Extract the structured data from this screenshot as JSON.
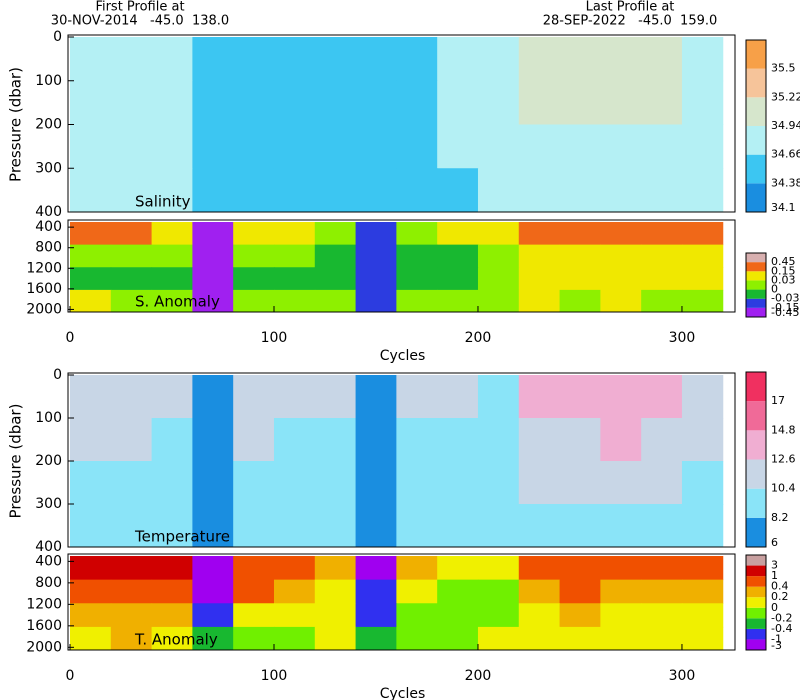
{
  "header": {
    "first_label": "First Profile at",
    "first_info": "30-NOV-2014   -45.0  138.0",
    "last_label": "Last Profile at",
    "last_info": "28-SEP-2022   -45.0  159.0"
  },
  "chart_data": [
    {
      "type": "heatmap",
      "label": "Salinity",
      "ylabel": "Pressure (dbar)",
      "x_edges": [
        0,
        20,
        40,
        60,
        80,
        100,
        120,
        140,
        160,
        180,
        200,
        220,
        240,
        260,
        280,
        300,
        320
      ],
      "y_edges": [
        0,
        100,
        200,
        300,
        400
      ],
      "values": [
        [
          34.75,
          34.72,
          34.7,
          34.55,
          34.65,
          34.6,
          34.62,
          34.55,
          34.62,
          34.7,
          34.72,
          35.2,
          35.0,
          35.1,
          35.05,
          34.9
        ],
        [
          34.72,
          34.72,
          34.7,
          34.55,
          34.65,
          34.62,
          34.62,
          34.58,
          34.62,
          34.68,
          34.7,
          35.0,
          34.95,
          35.0,
          34.98,
          34.85
        ],
        [
          34.7,
          34.7,
          34.68,
          34.58,
          34.64,
          34.62,
          34.62,
          34.6,
          34.62,
          34.66,
          34.68,
          34.85,
          34.8,
          34.85,
          34.85,
          34.75
        ],
        [
          34.68,
          34.68,
          34.66,
          34.58,
          34.63,
          34.62,
          34.62,
          34.6,
          34.62,
          34.65,
          34.66,
          34.7,
          34.7,
          34.72,
          34.7,
          34.68
        ]
      ],
      "xlim": [
        0,
        326
      ],
      "ylim": [
        400,
        0
      ],
      "yticks": [
        0,
        100,
        200,
        300,
        400
      ],
      "colorbar": {
        "ticks": [
          34.1,
          34.38,
          34.66,
          34.94,
          35.22,
          35.5
        ],
        "colors": [
          "#1a8ee0",
          "#3cc6f2",
          "#b4f0f4",
          "#d6e6cc",
          "#f6c49a",
          "#f7a048"
        ]
      }
    },
    {
      "type": "heatmap",
      "label": "S. Anomaly",
      "xlabel": "Cycles",
      "x_edges": [
        0,
        20,
        40,
        60,
        80,
        100,
        120,
        140,
        160,
        180,
        200,
        220,
        240,
        260,
        280,
        300,
        320
      ],
      "y_edges": [
        300,
        740,
        1180,
        1620,
        2050
      ],
      "values": [
        [
          0.2,
          0.2,
          0.1,
          -0.2,
          0.05,
          0.03,
          0.02,
          -0.1,
          0.0,
          0.05,
          0.03,
          0.2,
          0.2,
          0.15,
          0.2,
          0.15
        ],
        [
          0.02,
          0.02,
          0.0,
          -0.2,
          0.0,
          0.0,
          -0.01,
          -0.1,
          -0.02,
          -0.01,
          0.0,
          0.1,
          0.1,
          0.1,
          0.1,
          0.08
        ],
        [
          -0.02,
          -0.02,
          -0.01,
          -0.2,
          -0.02,
          -0.01,
          -0.02,
          -0.1,
          -0.02,
          -0.02,
          0.0,
          0.05,
          0.04,
          0.05,
          0.04,
          0.03
        ],
        [
          0.04,
          0.02,
          0.0,
          -0.2,
          0.02,
          0.0,
          0.0,
          -0.1,
          0.0,
          0.02,
          0.0,
          0.03,
          0.02,
          0.03,
          0.02,
          0.02
        ]
      ],
      "xlim": [
        0,
        326
      ],
      "ylim": [
        2050,
        300
      ],
      "yticks": [
        400,
        800,
        1200,
        1600,
        2000
      ],
      "xticks": [
        0,
        100,
        200,
        300
      ],
      "colorbar": {
        "ticks": [
          -0.45,
          -0.15,
          -0.03,
          0,
          0.03,
          0.15,
          0.45
        ],
        "colors": [
          "#a020f0",
          "#2c3ce0",
          "#18b830",
          "#8ef000",
          "#f0e800",
          "#f06818",
          "#d8b0b0"
        ]
      }
    },
    {
      "type": "heatmap",
      "label": "Temperature",
      "ylabel": "Pressure (dbar)",
      "x_edges": [
        0,
        20,
        40,
        60,
        80,
        100,
        120,
        140,
        160,
        180,
        200,
        220,
        240,
        260,
        280,
        300,
        320
      ],
      "y_edges": [
        0,
        100,
        200,
        300,
        400
      ],
      "values": [
        [
          12.0,
          11.0,
          10.5,
          8.0,
          11.5,
          10.5,
          11.0,
          8.0,
          11.0,
          10.5,
          10.0,
          13.0,
          13.5,
          13.5,
          13.0,
          11.0
        ],
        [
          10.8,
          10.5,
          10.2,
          8.0,
          10.5,
          10.0,
          10.3,
          8.0,
          10.2,
          10.0,
          10.0,
          12.0,
          12.5,
          12.8,
          12.5,
          10.5
        ],
        [
          10.2,
          10.0,
          9.8,
          7.8,
          9.8,
          9.6,
          9.8,
          7.8,
          9.6,
          9.5,
          9.6,
          11.0,
          11.2,
          11.5,
          11.0,
          10.0
        ],
        [
          9.8,
          9.6,
          9.4,
          7.8,
          9.4,
          9.2,
          9.4,
          7.8,
          9.2,
          9.0,
          9.2,
          10.0,
          10.0,
          10.2,
          10.0,
          9.5
        ]
      ],
      "xlim": [
        0,
        326
      ],
      "ylim": [
        400,
        0
      ],
      "yticks": [
        0,
        100,
        200,
        300,
        400
      ],
      "colorbar": {
        "ticks": [
          6,
          8.2,
          10.4,
          12.6,
          14.8,
          17
        ],
        "colors": [
          "#1a8ee0",
          "#8ae4f8",
          "#c8d6e6",
          "#f0aed2",
          "#f06a98",
          "#f03060"
        ]
      }
    },
    {
      "type": "heatmap",
      "label": "T. Anomaly",
      "xlabel": "Cycles",
      "x_edges": [
        0,
        20,
        40,
        60,
        80,
        100,
        120,
        140,
        160,
        180,
        200,
        220,
        240,
        260,
        280,
        300,
        320
      ],
      "y_edges": [
        300,
        740,
        1180,
        1620,
        2050
      ],
      "values": [
        [
          1.5,
          1.5,
          1.0,
          -2.0,
          0.6,
          0.4,
          0.3,
          -1.5,
          0.2,
          0.1,
          0.0,
          0.6,
          0.8,
          0.5,
          0.6,
          0.4
        ],
        [
          0.5,
          0.5,
          0.4,
          -1.5,
          0.4,
          0.2,
          0.1,
          -1.0,
          0.0,
          -0.1,
          -0.1,
          0.3,
          0.5,
          0.3,
          0.3,
          0.2
        ],
        [
          0.2,
          0.3,
          0.3,
          -0.5,
          0.1,
          0.0,
          0.1,
          -0.5,
          -0.1,
          -0.2,
          -0.1,
          0.1,
          0.2,
          0.1,
          0.1,
          0.1
        ],
        [
          0.1,
          0.3,
          0.1,
          -0.3,
          -0.1,
          -0.1,
          0.0,
          -0.3,
          -0.2,
          -0.1,
          0.0,
          0.0,
          0.0,
          0.0,
          0.0,
          0.0
        ]
      ],
      "xlim": [
        0,
        326
      ],
      "ylim": [
        2050,
        300
      ],
      "yticks": [
        400,
        800,
        1200,
        1600,
        2000
      ],
      "xticks": [
        0,
        100,
        200,
        300
      ],
      "colorbar": {
        "ticks": [
          -3,
          -1,
          -0.4,
          -0.2,
          0,
          0.2,
          0.4,
          1,
          3
        ],
        "colors": [
          "#a000f0",
          "#3030f0",
          "#18b830",
          "#70f000",
          "#f0f000",
          "#f0b000",
          "#f05000",
          "#d00000",
          "#c8a0a0"
        ]
      }
    }
  ]
}
